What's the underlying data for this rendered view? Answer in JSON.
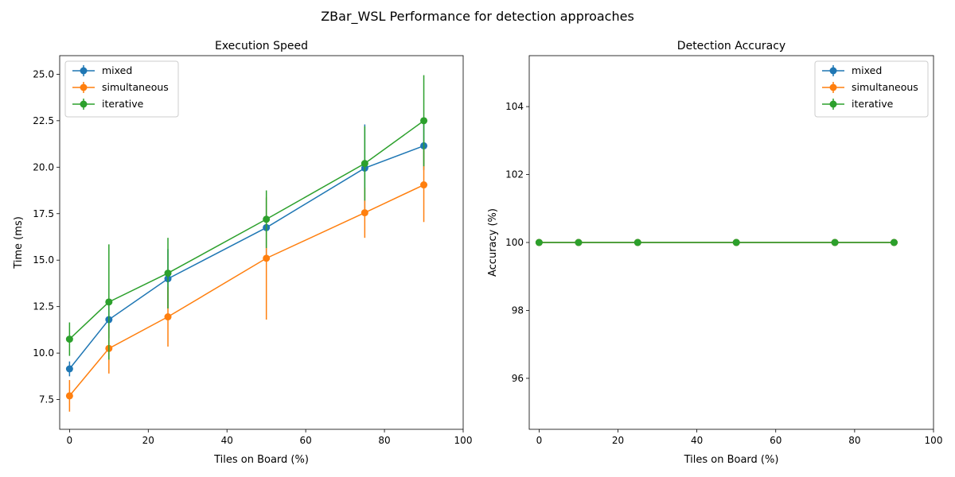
{
  "figure": {
    "title": "ZBar_WSL Performance for detection approaches"
  },
  "chart_data": [
    {
      "type": "line",
      "title": "Execution Speed",
      "xlabel": "Tiles on Board (%)",
      "ylabel": "Time (ms)",
      "xlim": [
        -2.5,
        100
      ],
      "ylim": [
        5.9,
        26.0
      ],
      "xticks": [
        0,
        20,
        40,
        60,
        80,
        100
      ],
      "yticks": [
        7.5,
        10.0,
        12.5,
        15.0,
        17.5,
        20.0,
        22.5,
        25.0
      ],
      "ytick_format": 1,
      "grid": false,
      "legend": "top-left",
      "x": [
        0,
        10,
        25,
        50,
        75,
        90
      ],
      "series": [
        {
          "name": "mixed",
          "color": "#1f77b4",
          "values": [
            9.15,
            11.8,
            14.0,
            16.75,
            19.95,
            21.15
          ],
          "err": [
            0.4,
            1.0,
            1.6,
            1.6,
            2.35,
            1.3
          ]
        },
        {
          "name": "simultaneous",
          "color": "#ff7f0e",
          "values": [
            7.7,
            10.25,
            11.95,
            15.1,
            17.55,
            19.05
          ],
          "err": [
            0.85,
            1.35,
            1.6,
            3.3,
            1.35,
            2.0
          ]
        },
        {
          "name": "iterative",
          "color": "#2ca02c",
          "values": [
            10.75,
            12.75,
            14.3,
            17.2,
            20.2,
            22.5
          ],
          "err": [
            0.9,
            3.1,
            1.9,
            1.55,
            2.0,
            2.45
          ]
        }
      ]
    },
    {
      "type": "line",
      "title": "Detection Accuracy",
      "xlabel": "Tiles on Board (%)",
      "ylabel": "Accuracy (%)",
      "xlim": [
        -2.5,
        100
      ],
      "ylim": [
        94.5,
        105.5
      ],
      "xticks": [
        0,
        20,
        40,
        60,
        80,
        100
      ],
      "yticks": [
        96,
        98,
        100,
        102,
        104
      ],
      "ytick_format": 0,
      "grid": false,
      "legend": "top-right",
      "x": [
        0,
        10,
        25,
        50,
        75,
        90
      ],
      "series": [
        {
          "name": "mixed",
          "color": "#1f77b4",
          "values": [
            100,
            100,
            100,
            100,
            100,
            100
          ],
          "err": [
            0,
            0,
            0,
            0,
            0,
            0
          ]
        },
        {
          "name": "simultaneous",
          "color": "#ff7f0e",
          "values": [
            100,
            100,
            100,
            100,
            100,
            100
          ],
          "err": [
            0,
            0,
            0,
            0,
            0,
            0
          ]
        },
        {
          "name": "iterative",
          "color": "#2ca02c",
          "values": [
            100,
            100,
            100,
            100,
            100,
            100
          ],
          "err": [
            0,
            0,
            0,
            0,
            0,
            0
          ]
        }
      ]
    }
  ]
}
